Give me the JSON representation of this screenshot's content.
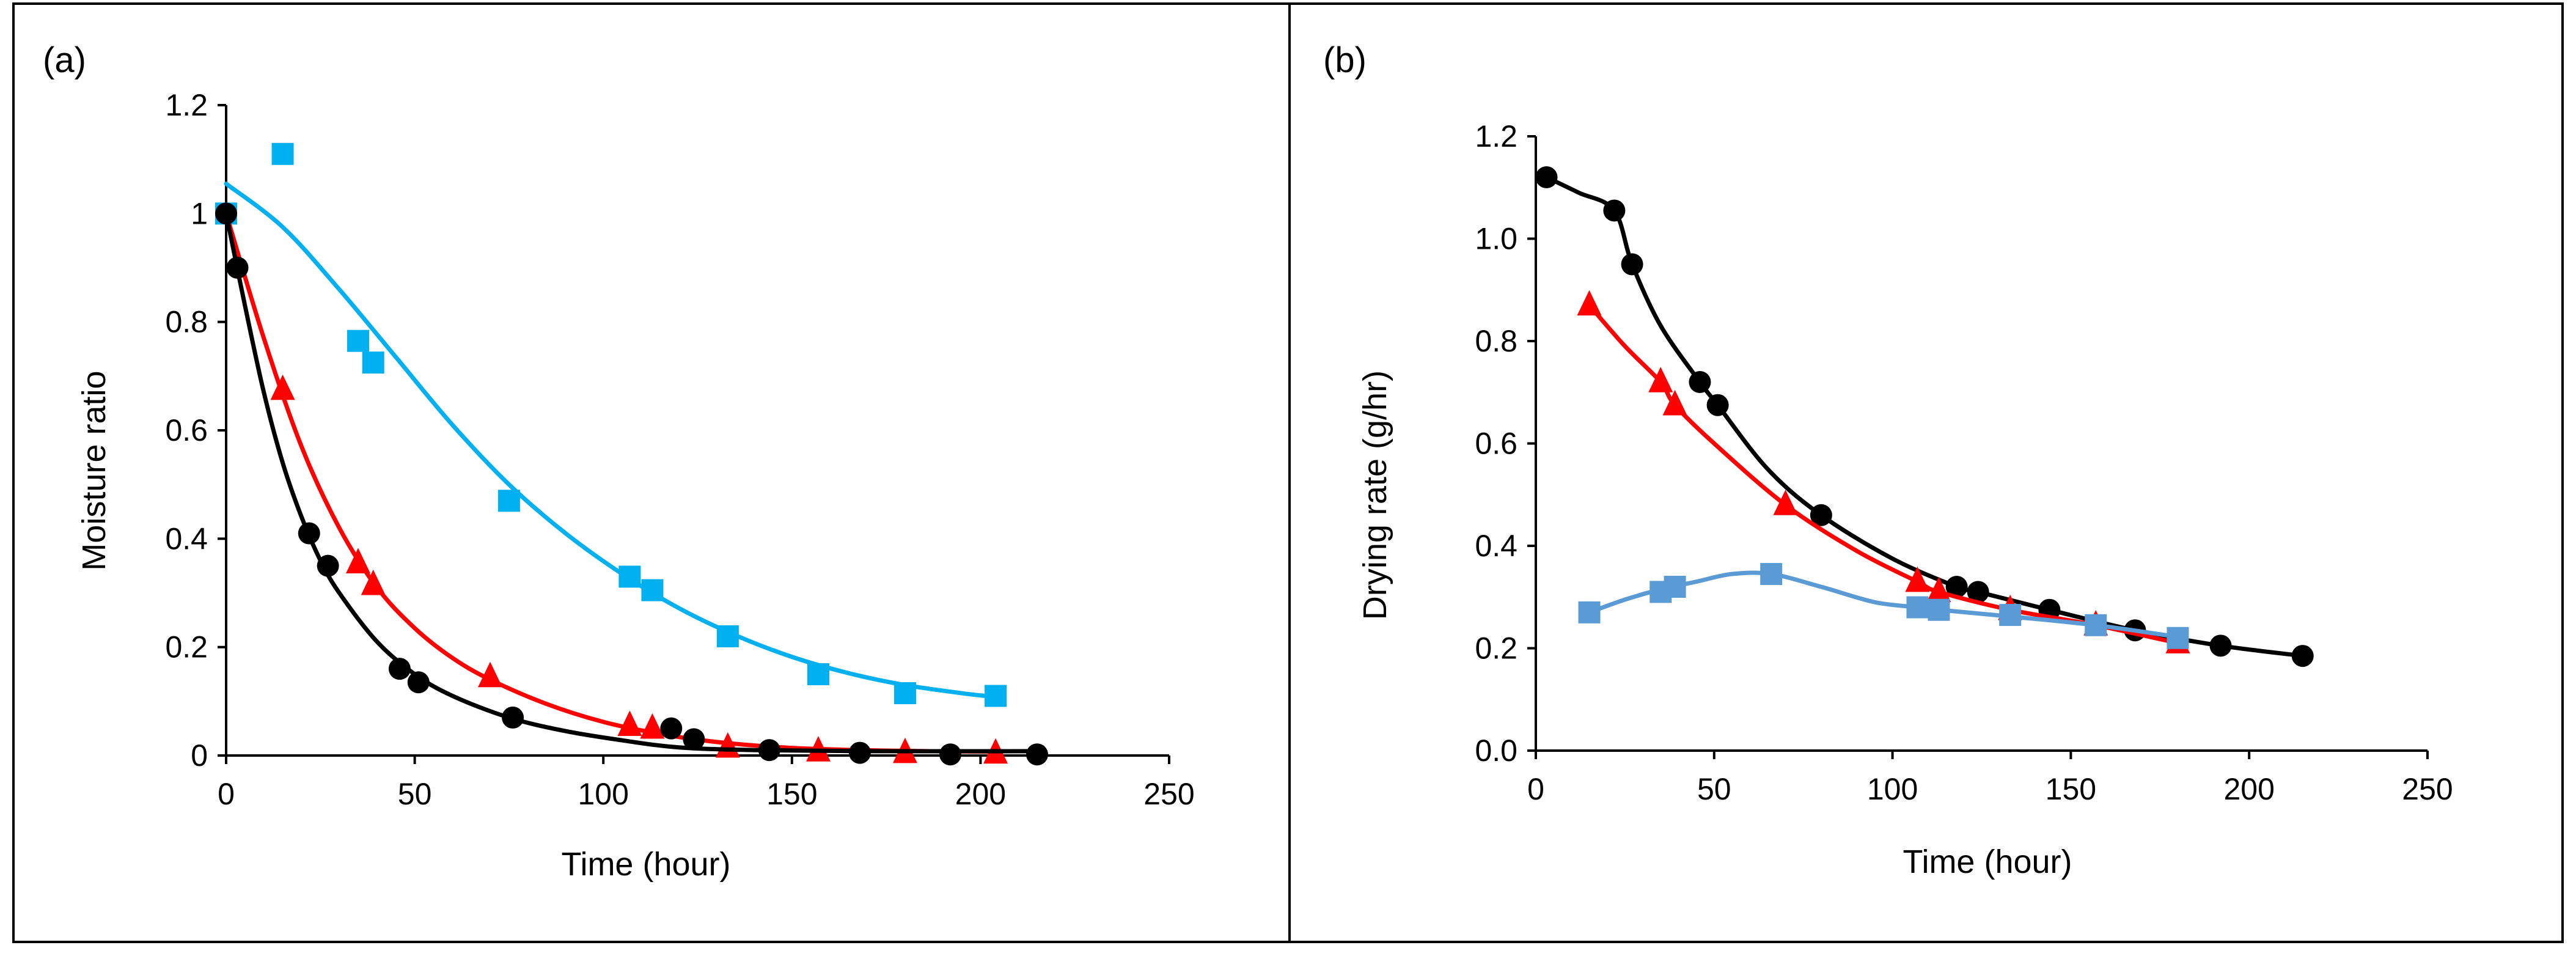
{
  "chart_data": [
    {
      "type": "scatter",
      "panel_label": "(a)",
      "xlabel": "Time (hour)",
      "ylabel": "Moisture ratio",
      "xlim": [
        0,
        250
      ],
      "ylim": [
        0,
        1.2
      ],
      "xticks": [
        "0",
        "50",
        "100",
        "150",
        "200",
        "250"
      ],
      "yticks": [
        "0",
        "0.2",
        "0.4",
        "0.6",
        "0.8",
        "1",
        "1.2"
      ],
      "grid": false,
      "legend": "none",
      "series": [
        {
          "color": "#00b0f0",
          "marker": "square",
          "x": [
            0,
            15,
            35,
            39,
            75,
            107,
            113,
            133,
            157,
            180,
            204
          ],
          "y": [
            1.0,
            1.11,
            0.765,
            0.725,
            0.47,
            0.33,
            0.305,
            0.22,
            0.15,
            0.115,
            0.11
          ],
          "fit_x": [
            0,
            15,
            30,
            45,
            60,
            75,
            90,
            105,
            120,
            135,
            150,
            165,
            180,
            195,
            204
          ],
          "fit_y": [
            1.055,
            0.975,
            0.86,
            0.735,
            0.61,
            0.5,
            0.41,
            0.335,
            0.272,
            0.222,
            0.182,
            0.152,
            0.13,
            0.115,
            0.108
          ]
        },
        {
          "color": "#ff0000",
          "marker": "triangle",
          "x": [
            15,
            35,
            39,
            70,
            107,
            113,
            133,
            157,
            180,
            204
          ],
          "y": [
            0.675,
            0.355,
            0.315,
            0.145,
            0.055,
            0.05,
            0.015,
            0.008,
            0.005,
            0.004
          ],
          "fit_x": [
            0,
            10,
            20,
            30,
            40,
            50,
            60,
            70,
            85,
            100,
            115,
            130,
            150,
            175,
            204
          ],
          "fit_y": [
            1.0,
            0.77,
            0.57,
            0.42,
            0.31,
            0.235,
            0.18,
            0.14,
            0.095,
            0.062,
            0.04,
            0.025,
            0.014,
            0.009,
            0.007
          ]
        },
        {
          "color": "#000000",
          "marker": "circle",
          "x": [
            0,
            3,
            22,
            27,
            46,
            51,
            76,
            118,
            124,
            144,
            168,
            192,
            215
          ],
          "y": [
            1.0,
            0.9,
            0.41,
            0.35,
            0.16,
            0.135,
            0.07,
            0.05,
            0.03,
            0.01,
            0.005,
            0.002,
            0.002
          ],
          "fit_x": [
            0,
            5,
            10,
            15,
            20,
            25,
            30,
            40,
            50,
            60,
            75,
            90,
            105,
            120,
            140,
            170,
            215
          ],
          "fit_y": [
            1.0,
            0.83,
            0.67,
            0.54,
            0.44,
            0.36,
            0.3,
            0.21,
            0.15,
            0.11,
            0.07,
            0.045,
            0.028,
            0.015,
            0.01,
            0.008,
            0.008
          ]
        }
      ]
    },
    {
      "type": "line",
      "panel_label": "(b)",
      "xlabel": "Time (hour)",
      "ylabel": "Drying rate (g/hr)",
      "xlim": [
        0,
        250
      ],
      "ylim": [
        0,
        1.2
      ],
      "xticks": [
        "0",
        "50",
        "100",
        "150",
        "200",
        "250"
      ],
      "yticks": [
        "0.0",
        "0.2",
        "0.4",
        "0.6",
        "0.8",
        "1.0",
        "1.2"
      ],
      "grid": false,
      "legend": "none",
      "series": [
        {
          "color": "#000000",
          "marker": "circle",
          "x": [
            3,
            22,
            27,
            46,
            51,
            80,
            118,
            124,
            144,
            168,
            192,
            215
          ],
          "y": [
            1.12,
            1.055,
            0.95,
            0.72,
            0.675,
            0.46,
            0.32,
            0.31,
            0.275,
            0.235,
            0.205,
            0.185
          ],
          "fit_x": [
            3,
            12,
            22,
            27,
            35,
            46,
            51,
            65,
            80,
            100,
            118,
            124,
            144,
            168,
            192,
            215
          ],
          "fit_y": [
            1.12,
            1.09,
            1.055,
            0.95,
            0.83,
            0.72,
            0.675,
            0.55,
            0.46,
            0.375,
            0.32,
            0.31,
            0.275,
            0.235,
            0.205,
            0.185
          ]
        },
        {
          "color": "#ff0000",
          "marker": "triangle",
          "x": [
            15,
            35,
            39,
            70,
            107,
            113,
            133,
            157,
            180
          ],
          "y": [
            0.87,
            0.72,
            0.675,
            0.48,
            0.33,
            0.31,
            0.275,
            0.245,
            0.21
          ],
          "fit_x": [
            15,
            25,
            35,
            39,
            50,
            70,
            90,
            107,
            113,
            133,
            157,
            180
          ],
          "fit_y": [
            0.87,
            0.79,
            0.72,
            0.675,
            0.6,
            0.48,
            0.39,
            0.33,
            0.31,
            0.275,
            0.245,
            0.21
          ]
        },
        {
          "color": "#5b9bd5",
          "marker": "square",
          "x": [
            15,
            35,
            39,
            66,
            107,
            113,
            133,
            157,
            180
          ],
          "y": [
            0.27,
            0.31,
            0.32,
            0.345,
            0.28,
            0.275,
            0.265,
            0.245,
            0.22
          ],
          "fit_x": [
            15,
            25,
            35,
            45,
            55,
            66,
            80,
            95,
            107,
            113,
            133,
            157,
            180
          ],
          "fit_y": [
            0.27,
            0.295,
            0.315,
            0.33,
            0.345,
            0.345,
            0.32,
            0.29,
            0.28,
            0.275,
            0.262,
            0.245,
            0.222
          ]
        }
      ]
    }
  ]
}
